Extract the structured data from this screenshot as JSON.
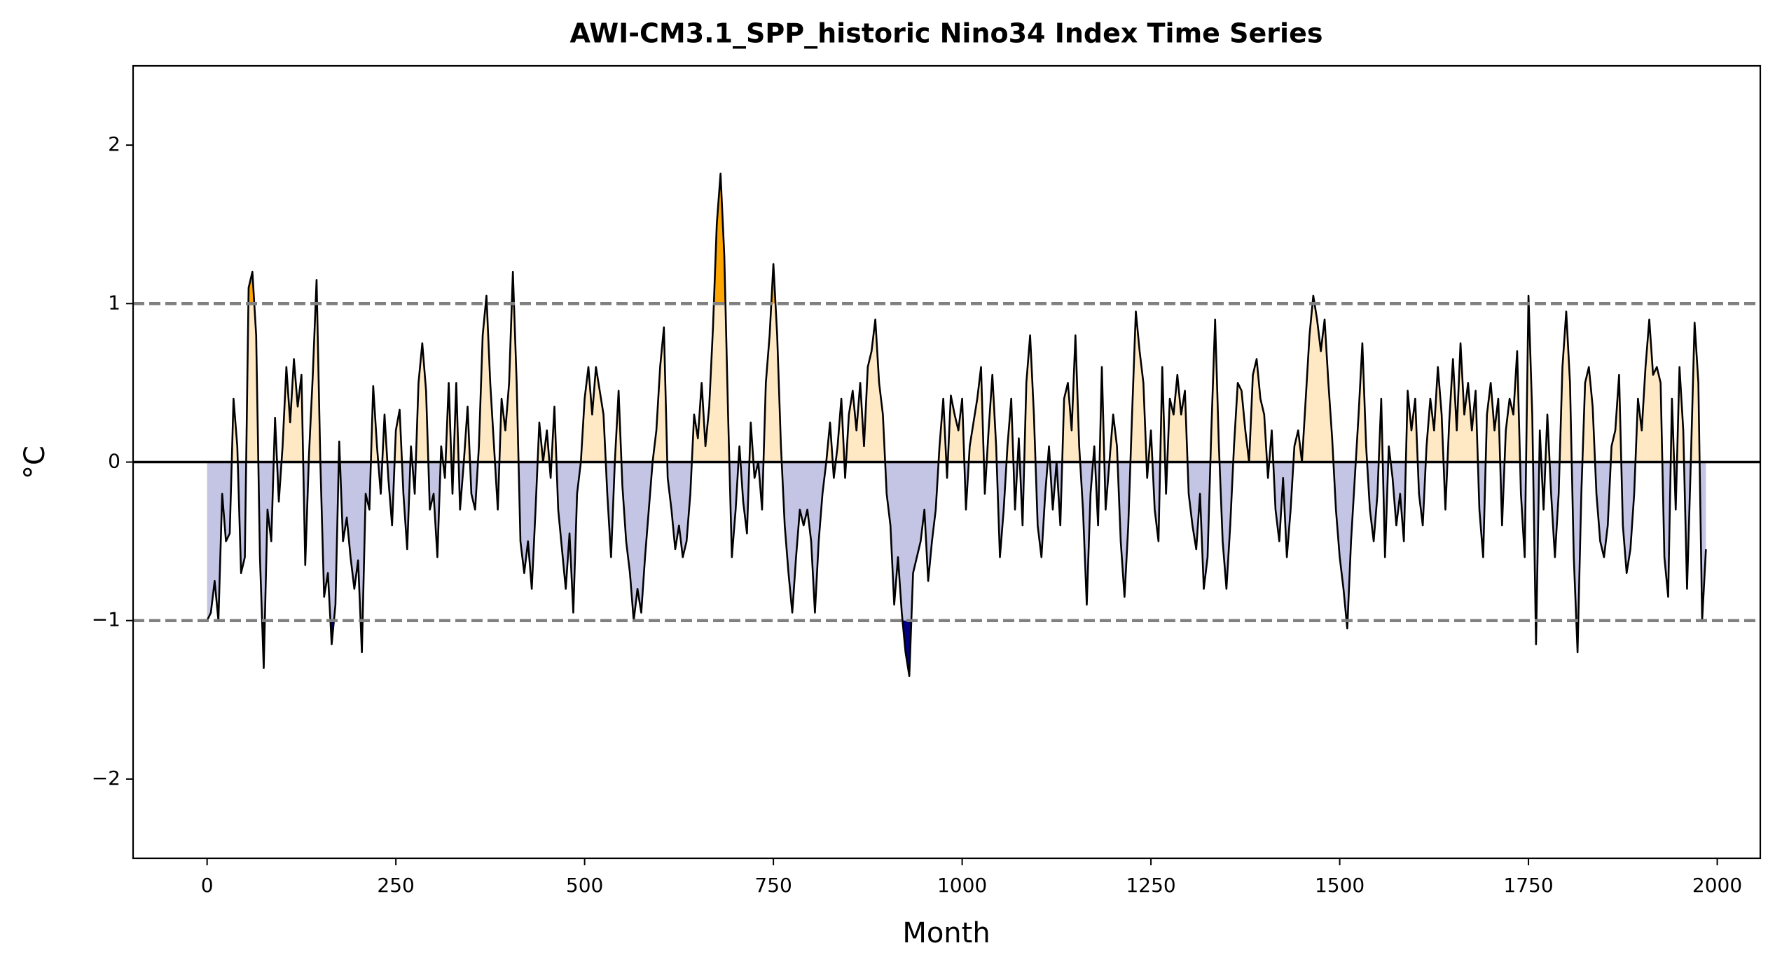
{
  "chart_data": {
    "type": "area",
    "title": "AWI-CM3.1_SPP_historic Nino34 Index Time Series",
    "xlabel": "Month",
    "ylabel": "°C",
    "xlim": [
      -98,
      2057
    ],
    "ylim": [
      -2.5,
      2.5
    ],
    "xticks": [
      0,
      250,
      500,
      750,
      1000,
      1250,
      1500,
      1750,
      2000
    ],
    "yticks": [
      {
        "value": -2,
        "label": "−2"
      },
      {
        "value": -1,
        "label": "−1"
      },
      0,
      1,
      2
    ],
    "threshold_lines": [
      1,
      -1
    ],
    "line_color": "#000000",
    "fill_colors": {
      "positive": "#ffe9c4",
      "negative": "#c4c4e4",
      "strong_positive": "#ffa500",
      "strong_negative": "#000080"
    },
    "x": [
      0,
      5,
      10,
      15,
      20,
      25,
      30,
      35,
      40,
      45,
      50,
      55,
      60,
      65,
      70,
      75,
      80,
      85,
      90,
      95,
      100,
      105,
      110,
      115,
      120,
      125,
      130,
      135,
      140,
      145,
      150,
      155,
      160,
      165,
      170,
      175,
      180,
      185,
      190,
      195,
      200,
      205,
      210,
      215,
      220,
      225,
      230,
      235,
      240,
      245,
      250,
      255,
      260,
      265,
      270,
      275,
      280,
      285,
      290,
      295,
      300,
      305,
      310,
      315,
      320,
      325,
      330,
      335,
      340,
      345,
      350,
      355,
      360,
      365,
      370,
      375,
      380,
      385,
      390,
      395,
      400,
      405,
      410,
      415,
      420,
      425,
      430,
      435,
      440,
      445,
      450,
      455,
      460,
      465,
      470,
      475,
      480,
      485,
      490,
      495,
      500,
      505,
      510,
      515,
      520,
      525,
      530,
      535,
      540,
      545,
      550,
      555,
      560,
      565,
      570,
      575,
      580,
      585,
      590,
      595,
      600,
      605,
      610,
      615,
      620,
      625,
      630,
      635,
      640,
      645,
      650,
      655,
      660,
      665,
      670,
      675,
      680,
      685,
      690,
      695,
      700,
      705,
      710,
      715,
      720,
      725,
      730,
      735,
      740,
      745,
      750,
      755,
      760,
      765,
      770,
      775,
      780,
      785,
      790,
      795,
      800,
      805,
      810,
      815,
      820,
      825,
      830,
      835,
      840,
      845,
      850,
      855,
      860,
      865,
      870,
      875,
      880,
      885,
      890,
      895,
      900,
      905,
      910,
      915,
      920,
      925,
      930,
      935,
      940,
      945,
      950,
      955,
      960,
      965,
      970,
      975,
      980,
      985,
      990,
      995,
      1000,
      1005,
      1010,
      1015,
      1020,
      1025,
      1030,
      1035,
      1040,
      1045,
      1050,
      1055,
      1060,
      1065,
      1070,
      1075,
      1080,
      1085,
      1090,
      1095,
      1100,
      1105,
      1110,
      1115,
      1120,
      1125,
      1130,
      1135,
      1140,
      1145,
      1150,
      1155,
      1160,
      1165,
      1170,
      1175,
      1180,
      1185,
      1190,
      1195,
      1200,
      1205,
      1210,
      1215,
      1220,
      1225,
      1230,
      1235,
      1240,
      1245,
      1250,
      1255,
      1260,
      1265,
      1270,
      1275,
      1280,
      1285,
      1290,
      1295,
      1300,
      1305,
      1310,
      1315,
      1320,
      1325,
      1330,
      1335,
      1340,
      1345,
      1350,
      1355,
      1360,
      1365,
      1370,
      1375,
      1380,
      1385,
      1390,
      1395,
      1400,
      1405,
      1410,
      1415,
      1420,
      1425,
      1430,
      1435,
      1440,
      1445,
      1450,
      1455,
      1460,
      1465,
      1470,
      1475,
      1480,
      1485,
      1490,
      1495,
      1500,
      1505,
      1510,
      1515,
      1520,
      1525,
      1530,
      1535,
      1540,
      1545,
      1550,
      1555,
      1560,
      1565,
      1570,
      1575,
      1580,
      1585,
      1590,
      1595,
      1600,
      1605,
      1610,
      1615,
      1620,
      1625,
      1630,
      1635,
      1640,
      1645,
      1650,
      1655,
      1660,
      1665,
      1670,
      1675,
      1680,
      1685,
      1690,
      1695,
      1700,
      1705,
      1710,
      1715,
      1720,
      1725,
      1730,
      1735,
      1740,
      1745,
      1750,
      1755,
      1760,
      1765,
      1770,
      1775,
      1780,
      1785,
      1790,
      1795,
      1800,
      1805,
      1810,
      1815,
      1820,
      1825,
      1830,
      1835,
      1840,
      1845,
      1850,
      1855,
      1860,
      1865,
      1870,
      1875,
      1880,
      1885,
      1890,
      1895,
      1900,
      1905,
      1910,
      1915,
      1920,
      1925,
      1930,
      1935,
      1940,
      1945,
      1950,
      1955,
      1960,
      1965,
      1970,
      1975,
      1980,
      1985
    ],
    "values": [
      -1.0,
      -0.95,
      -0.75,
      -1.0,
      -0.2,
      -0.5,
      -0.45,
      0.4,
      0.1,
      -0.7,
      -0.6,
      1.1,
      1.2,
      0.8,
      -0.6,
      -1.3,
      -0.3,
      -0.5,
      0.28,
      -0.25,
      0.1,
      0.6,
      0.25,
      0.65,
      0.35,
      0.55,
      -0.65,
      0.05,
      0.55,
      1.15,
      0.0,
      -0.85,
      -0.7,
      -1.15,
      -0.9,
      0.13,
      -0.5,
      -0.35,
      -0.6,
      -0.8,
      -0.62,
      -1.2,
      -0.2,
      -0.3,
      0.48,
      0.1,
      -0.2,
      0.3,
      -0.1,
      -0.4,
      0.2,
      0.33,
      -0.2,
      -0.55,
      0.1,
      -0.2,
      0.5,
      0.75,
      0.45,
      -0.3,
      -0.2,
      -0.6,
      0.1,
      -0.1,
      0.5,
      -0.2,
      0.5,
      -0.3,
      0.0,
      0.35,
      -0.2,
      -0.3,
      0.1,
      0.8,
      1.05,
      0.5,
      0.1,
      -0.3,
      0.4,
      0.2,
      0.5,
      1.2,
      0.5,
      -0.5,
      -0.7,
      -0.5,
      -0.8,
      -0.3,
      0.25,
      0.0,
      0.2,
      -0.1,
      0.35,
      -0.3,
      -0.55,
      -0.8,
      -0.45,
      -0.95,
      -0.2,
      0.0,
      0.4,
      0.6,
      0.3,
      0.6,
      0.45,
      0.3,
      -0.2,
      -0.6,
      0.0,
      0.45,
      -0.15,
      -0.5,
      -0.7,
      -1.0,
      -0.8,
      -0.95,
      -0.6,
      -0.3,
      0.0,
      0.2,
      0.6,
      0.85,
      -0.1,
      -0.3,
      -0.55,
      -0.4,
      -0.6,
      -0.5,
      -0.2,
      0.3,
      0.15,
      0.5,
      0.1,
      0.35,
      0.85,
      1.5,
      1.82,
      1.3,
      0.3,
      -0.6,
      -0.3,
      0.1,
      -0.25,
      -0.45,
      0.25,
      -0.1,
      0.0,
      -0.3,
      0.5,
      0.8,
      1.25,
      0.8,
      0.1,
      -0.4,
      -0.7,
      -0.95,
      -0.6,
      -0.3,
      -0.4,
      -0.3,
      -0.5,
      -0.95,
      -0.5,
      -0.2,
      0.0,
      0.25,
      -0.1,
      0.1,
      0.4,
      -0.1,
      0.3,
      0.45,
      0.2,
      0.5,
      0.1,
      0.6,
      0.7,
      0.9,
      0.5,
      0.3,
      -0.2,
      -0.4,
      -0.9,
      -0.6,
      -0.95,
      -1.2,
      -1.35,
      -0.7,
      -0.6,
      -0.5,
      -0.3,
      -0.75,
      -0.5,
      -0.3,
      0.1,
      0.4,
      -0.1,
      0.42,
      0.3,
      0.2,
      0.4,
      -0.3,
      0.1,
      0.25,
      0.4,
      0.6,
      -0.2,
      0.2,
      0.55,
      0.1,
      -0.6,
      -0.3,
      0.1,
      0.4,
      -0.3,
      0.15,
      -0.4,
      0.5,
      0.8,
      0.3,
      -0.4,
      -0.6,
      -0.2,
      0.1,
      -0.3,
      0.0,
      -0.4,
      0.4,
      0.5,
      0.2,
      0.8,
      0.1,
      -0.3,
      -0.9,
      -0.2,
      0.1,
      -0.4,
      0.6,
      -0.3,
      0.0,
      0.3,
      0.1,
      -0.5,
      -0.85,
      -0.4,
      0.3,
      0.95,
      0.7,
      0.5,
      -0.1,
      0.2,
      -0.3,
      -0.5,
      0.6,
      -0.2,
      0.4,
      0.3,
      0.55,
      0.3,
      0.45,
      -0.2,
      -0.4,
      -0.55,
      -0.2,
      -0.8,
      -0.6,
      0.2,
      0.9,
      0.1,
      -0.5,
      -0.8,
      -0.4,
      0.1,
      0.5,
      0.45,
      0.2,
      0.0,
      0.55,
      0.65,
      0.4,
      0.3,
      -0.1,
      0.2,
      -0.3,
      -0.5,
      -0.1,
      -0.6,
      -0.3,
      0.1,
      0.2,
      0.0,
      0.4,
      0.8,
      1.05,
      0.9,
      0.7,
      0.9,
      0.5,
      0.15,
      -0.3,
      -0.6,
      -0.8,
      -1.05,
      -0.5,
      -0.1,
      0.3,
      0.75,
      0.1,
      -0.3,
      -0.5,
      -0.2,
      0.4,
      -0.6,
      0.1,
      -0.1,
      -0.4,
      -0.2,
      -0.5,
      0.45,
      0.2,
      0.4,
      -0.2,
      -0.4,
      0.1,
      0.4,
      0.2,
      0.6,
      0.3,
      -0.3,
      0.25,
      0.65,
      0.2,
      0.75,
      0.3,
      0.5,
      0.2,
      0.45,
      -0.3,
      -0.6,
      0.3,
      0.5,
      0.2,
      0.4,
      -0.4,
      0.2,
      0.4,
      0.3,
      0.7,
      -0.2,
      -0.6,
      1.05,
      0.3,
      -1.15,
      0.2,
      -0.3,
      0.3,
      -0.2,
      -0.6,
      -0.2,
      0.6,
      0.95,
      0.5,
      -0.6,
      -1.2,
      -0.2,
      0.5,
      0.6,
      0.35,
      -0.2,
      -0.5,
      -0.6,
      -0.4,
      0.1,
      0.2,
      0.55,
      -0.4,
      -0.7,
      -0.55,
      -0.2,
      0.4,
      0.2,
      0.6,
      0.9,
      0.55,
      0.6,
      0.5,
      -0.6,
      -0.85,
      0.4,
      -0.3,
      0.6,
      0.2,
      -0.8,
      0.0,
      0.88,
      0.5,
      -1.0,
      -0.55
    ]
  }
}
